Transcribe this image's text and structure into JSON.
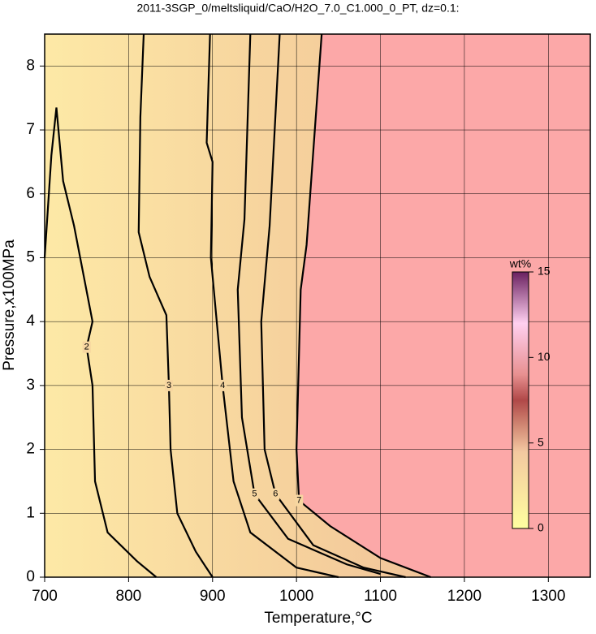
{
  "chart_data": {
    "type": "contour",
    "title": "2011-3SGP_0/meltsliquid/CaO/H2O_7.0_C1.000_0_PT, dz=0.1:",
    "x_label": "Temperature,°C",
    "y_label": "Pressure,x100MPa",
    "xlim": [
      700,
      1350
    ],
    "ylim": [
      0,
      8.5
    ],
    "xticks": [
      700,
      800,
      900,
      1000,
      1100,
      1200,
      1300
    ],
    "yticks": [
      0,
      1,
      2,
      3,
      4,
      5,
      6,
      7,
      8
    ],
    "grid": true,
    "region_color": "#fca8a8",
    "contours": [
      {
        "level": 2,
        "x": [
          700,
          708,
          714,
          722,
          735,
          757,
          750,
          757,
          760,
          775,
          810,
          833
        ],
        "y": [
          5.0,
          6.6,
          7.35,
          6.2,
          5.5,
          4.0,
          3.6,
          3.0,
          1.5,
          0.7,
          0.25,
          0
        ]
      },
      {
        "level": 3,
        "x": [
          818,
          814,
          812,
          825,
          845,
          848,
          850,
          858,
          880,
          900
        ],
        "y": [
          8.5,
          7.2,
          5.4,
          4.7,
          4.1,
          3.0,
          2.0,
          1.0,
          0.4,
          0
        ]
      },
      {
        "level": 4,
        "x": [
          897,
          893,
          900,
          898,
          905,
          912,
          925,
          945,
          1000,
          1050
        ],
        "y": [
          8.5,
          6.8,
          6.5,
          5.0,
          4.0,
          3.0,
          1.5,
          0.7,
          0.15,
          0
        ]
      },
      {
        "level": 5,
        "x": [
          945,
          938,
          930,
          935,
          950,
          990,
          1060,
          1100
        ],
        "y": [
          8.5,
          5.6,
          4.5,
          2.5,
          1.3,
          0.6,
          0.2,
          0.05
        ]
      },
      {
        "level": 6,
        "x": [
          980,
          968,
          958,
          962,
          975,
          1020,
          1080,
          1130
        ],
        "y": [
          8.5,
          5.5,
          4.0,
          2.0,
          1.3,
          0.5,
          0.15,
          0
        ]
      },
      {
        "level": 7,
        "x": [
          1030,
          1012,
          1005,
          1000,
          1003,
          1040,
          1100,
          1160
        ],
        "y": [
          8.5,
          5.2,
          4.5,
          2.0,
          1.2,
          0.8,
          0.3,
          0
        ]
      }
    ],
    "colorbar": {
      "label": "wt%",
      "lim": [
        0,
        15
      ],
      "ticks": [
        0,
        5,
        10,
        15
      ]
    }
  }
}
